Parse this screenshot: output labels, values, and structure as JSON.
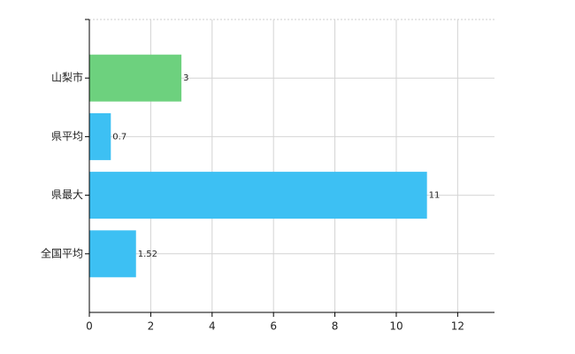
{
  "chart_data": {
    "type": "hbar",
    "categories": [
      "山梨市",
      "県平均",
      "県最大",
      "全国平均"
    ],
    "values": [
      3,
      0.7,
      11,
      1.52
    ],
    "colors": [
      "#6dd17e",
      "#3dc0f3",
      "#3dc0f3",
      "#3dc0f3"
    ],
    "xlim": [
      0,
      13.2
    ],
    "xticks": [
      0,
      2,
      4,
      6,
      8,
      10,
      12
    ],
    "grid": true
  }
}
